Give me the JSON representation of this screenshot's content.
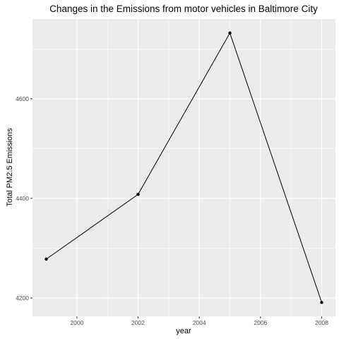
{
  "chart_data": {
    "type": "line",
    "title": "Changes in the Emissions from motor vehicles in Baltimore City",
    "xlabel": "year",
    "ylabel": "Total PM2.5 Emissions",
    "x": [
      1999,
      2002,
      2005,
      2008
    ],
    "y": [
      4278,
      4408,
      4732,
      4191
    ],
    "xlim": [
      1998.55,
      2008.45
    ],
    "ylim": [
      4163,
      4760
    ],
    "xticks": [
      2000,
      2002,
      2004,
      2006,
      2008
    ],
    "yticks": [
      4200,
      4400,
      4600
    ],
    "grid": true,
    "colors": {
      "panel_background": "#ebebeb",
      "grid": "#ffffff",
      "line": "#000000"
    }
  }
}
